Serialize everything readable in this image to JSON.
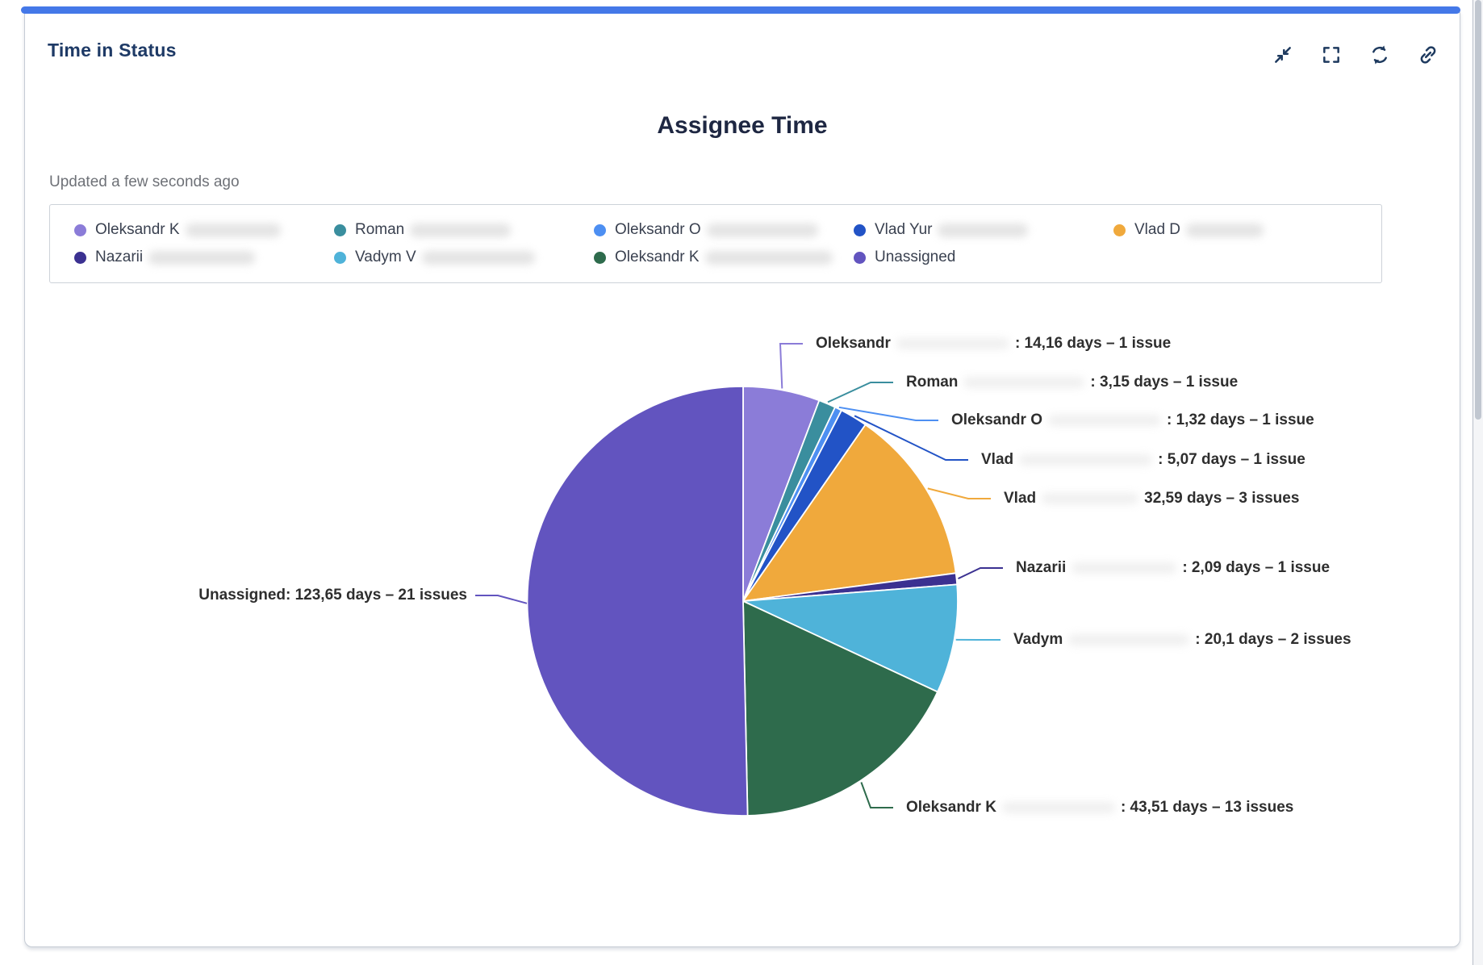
{
  "card": {
    "title": "Time in Status",
    "updated": "Updated a few seconds ago",
    "accent_color": "#4478E8",
    "toolbar": {
      "icons": [
        "collapse",
        "fullscreen",
        "refresh",
        "link"
      ]
    }
  },
  "chart": {
    "title": "Assignee Time"
  },
  "chart_data": {
    "type": "pie",
    "title": "Assignee Time",
    "value_unit": "days",
    "direction": "clockwise",
    "start_angle_deg": 0,
    "legend_position": "top",
    "slices": [
      {
        "legend_label": "Oleksandr K",
        "pie_label": "Oleksandr",
        "redacted": true,
        "days": 14.16,
        "days_display": "14,16",
        "issues": 1,
        "callout": ": 14,16 days – 1 issue",
        "color": "#8B7CD8"
      },
      {
        "legend_label": "Roman",
        "pie_label": "Roman",
        "redacted": true,
        "days": 3.15,
        "days_display": "3,15",
        "issues": 1,
        "callout": ": 3,15 days – 1 issue",
        "color": "#3A8E9E"
      },
      {
        "legend_label": "Oleksandr O",
        "pie_label": "Oleksandr O",
        "redacted": true,
        "days": 1.32,
        "days_display": "1,32",
        "issues": 1,
        "callout": ": 1,32 days – 1 issue",
        "color": "#4D8FF2"
      },
      {
        "legend_label": "Vlad Yur",
        "pie_label": "Vlad",
        "redacted": true,
        "days": 5.07,
        "days_display": "5,07",
        "issues": 1,
        "callout": ": 5,07 days – 1 issue",
        "color": "#2253C6"
      },
      {
        "legend_label": "Vlad D",
        "pie_label": "Vlad",
        "redacted": true,
        "days": 32.59,
        "days_display": "32,59",
        "issues": 3,
        "callout": "32,59 days – 3 issues",
        "color": "#F0A93C"
      },
      {
        "legend_label": "Nazarii",
        "pie_label": "Nazarii",
        "redacted": true,
        "days": 2.09,
        "days_display": "2,09",
        "issues": 1,
        "callout": ": 2,09 days – 1 issue",
        "color": "#3B3191"
      },
      {
        "legend_label": "Vadym V",
        "pie_label": "Vadym",
        "redacted": true,
        "days": 20.1,
        "days_display": "20,1",
        "issues": 2,
        "callout": ": 20,1 days – 2 issues",
        "color": "#4FB3D9"
      },
      {
        "legend_label": "Oleksandr K",
        "pie_label": "Oleksandr K",
        "redacted": true,
        "days": 43.51,
        "days_display": "43,51",
        "issues": 13,
        "callout": ": 43,51 days – 13 issues",
        "color": "#2E6B4C"
      },
      {
        "legend_label": "Unassigned",
        "pie_label": "Unassigned",
        "redacted": false,
        "days": 123.65,
        "days_display": "123,65",
        "issues": 21,
        "callout": ": 123,65 days – 21 issues",
        "color": "#6254BF"
      }
    ]
  }
}
